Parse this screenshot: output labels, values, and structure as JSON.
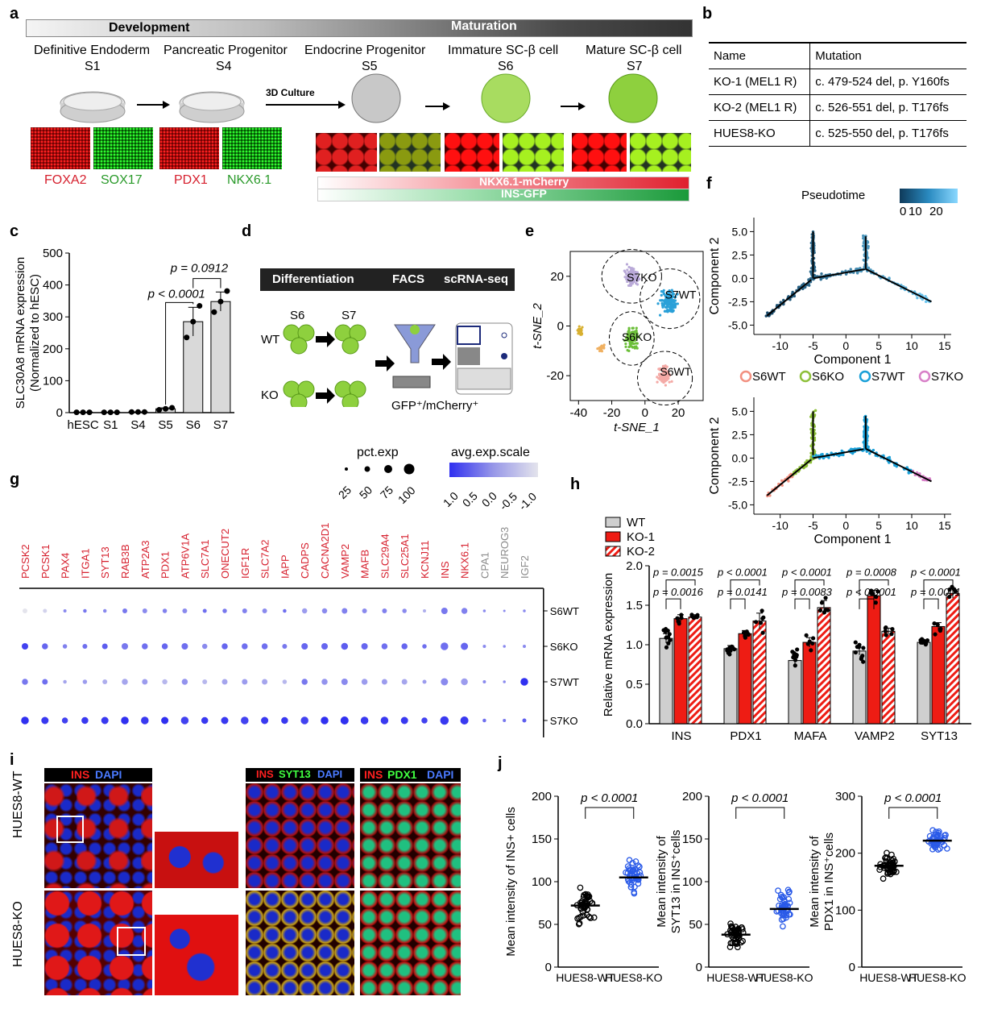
{
  "panels": {
    "a": {
      "label": "a",
      "bar_left": "Development",
      "bar_right": "Maturation",
      "stages": [
        {
          "name": "Definitive Endoderm",
          "stage": "S1"
        },
        {
          "name": "Pancreatic Progenitor",
          "stage": "S4"
        },
        {
          "name": "Endocrine Progenitor",
          "stage": "S5"
        },
        {
          "name": "Immature SC-β cell",
          "stage": "S6"
        },
        {
          "name": "Mature SC-β cell",
          "stage": "S7"
        }
      ],
      "culture_label": "3D Culture",
      "markers": [
        "FOXA2",
        "SOX17",
        "PDX1",
        "NKX6.1"
      ],
      "reporter1": "NKX6.1-mCherry",
      "reporter2": "INS-GFP"
    },
    "b": {
      "label": "b",
      "header": [
        "Name",
        "Mutation"
      ],
      "rows": [
        [
          "KO-1 (MEL1 R)",
          "c. 479-524 del, p. Y160fs"
        ],
        [
          "KO-2 (MEL1 R)",
          "c. 526-551 del, p. T176fs"
        ],
        [
          "HUES8-KO",
          "c. 525-550 del, p. T176fs"
        ]
      ]
    },
    "c": {
      "label": "c",
      "p1": "p < 0.0001",
      "p2": "p = 0.0912"
    },
    "d": {
      "label": "d",
      "steps": [
        "Differentiation",
        "FACS",
        "scRNA-seq"
      ],
      "wt": "WT",
      "ko": "KO",
      "s6": "S6",
      "s7": "S7",
      "sort_label": "GFP⁺/mCherry⁺"
    },
    "e": {
      "label": "e",
      "clusters": [
        "S7KO",
        "S7WT",
        "S6KO",
        "S6WT"
      ]
    },
    "f": {
      "label": "f",
      "legend_title": "Pseudotime",
      "scale_ticks": [
        "0",
        "10",
        "20"
      ],
      "groups": [
        "S6WT",
        "S6KO",
        "S7WT",
        "S7KO"
      ]
    },
    "g": {
      "label": "g",
      "legend_size_title": "pct.exp",
      "legend_color_title": "avg.exp.scale",
      "size_ticks": [
        "25",
        "50",
        "75",
        "100"
      ],
      "color_ticks": [
        "1.0",
        "0.5",
        "0.0",
        "-0.5",
        "-1.0"
      ]
    },
    "h": {
      "label": "h",
      "legend": [
        "WT",
        "KO-1",
        "KO-2"
      ]
    },
    "i": {
      "label": "i",
      "row1": "HUES8-WT",
      "row2": "HUES8-KO",
      "stain1": [
        "INS",
        "DAPI"
      ],
      "stain2": [
        "INS",
        "SYT13",
        "DAPI"
      ],
      "stain3": [
        "INS",
        "PDX1",
        "DAPI"
      ]
    },
    "j": {
      "label": "j"
    }
  },
  "chart_data": [
    {
      "id": "c",
      "type": "bar",
      "categories": [
        "hESC",
        "S1",
        "S4",
        "S5",
        "S6",
        "S7"
      ],
      "values": [
        1,
        1,
        2,
        12,
        285,
        348
      ],
      "errors": [
        0,
        0,
        0,
        3,
        45,
        30
      ],
      "ylabel": "SLC30A8 mRNA expression\n(Normalized to hESC)",
      "ylim": [
        0,
        500
      ],
      "yticks": [
        0,
        100,
        200,
        300,
        400,
        500
      ]
    },
    {
      "id": "e",
      "type": "scatter",
      "xlabel": "t-SNE_1",
      "ylabel": "t-SNE_2",
      "xticks": [
        -40,
        -20,
        0,
        20
      ],
      "yticks": [
        -20,
        0,
        20
      ]
    },
    {
      "id": "f1",
      "type": "scatter",
      "xlabel": "Component 1",
      "ylabel": "Component 2",
      "xticks": [
        -10,
        -5,
        0,
        5,
        10,
        15
      ],
      "yticks": [
        5.0,
        2.5,
        0.0,
        -2.5,
        -5.0
      ]
    },
    {
      "id": "f2",
      "type": "scatter",
      "xlabel": "Component 1",
      "ylabel": "Component 2",
      "xticks": [
        -10,
        -5,
        0,
        5,
        10,
        15
      ],
      "yticks": [
        5.0,
        2.5,
        0.0,
        -2.5,
        -5.0
      ]
    },
    {
      "id": "g",
      "type": "dot",
      "genes": [
        "PCSK2",
        "PCSK1",
        "PAX4",
        "ITGA1",
        "SYT13",
        "RAB3B",
        "ATP2A3",
        "PDX1",
        "ATP6V1A",
        "SLC7A1",
        "ONECUT2",
        "IGF1R",
        "SLC7A2",
        "IAPP",
        "CADPS",
        "CACNA2D1",
        "VAMP2",
        "MAFB",
        "SLC29A4",
        "SLC25A1",
        "KCNJ11",
        "INS",
        "NKX6.1",
        "CPA1",
        "NEUROG3",
        "IGF2"
      ],
      "gene_colors": [
        "#d6202e",
        "#d6202e",
        "#d6202e",
        "#d6202e",
        "#d6202e",
        "#d6202e",
        "#d6202e",
        "#d6202e",
        "#d6202e",
        "#d6202e",
        "#d6202e",
        "#d6202e",
        "#d6202e",
        "#d6202e",
        "#d6202e",
        "#d6202e",
        "#d6202e",
        "#d6202e",
        "#d6202e",
        "#d6202e",
        "#d6202e",
        "#d6202e",
        "#d6202e",
        "#8a8a8a",
        "#8a8a8a",
        "#8a8a8a"
      ],
      "groups": [
        "S6WT",
        "S6KO",
        "S7WT",
        "S7KO"
      ],
      "pct": [
        [
          40,
          30,
          20,
          25,
          25,
          40,
          40,
          35,
          40,
          30,
          35,
          40,
          40,
          25,
          45,
          45,
          50,
          40,
          40,
          35,
          20,
          60,
          55,
          15,
          10,
          15
        ],
        [
          60,
          55,
          35,
          40,
          50,
          60,
          55,
          55,
          60,
          45,
          55,
          55,
          55,
          40,
          60,
          60,
          65,
          60,
          55,
          55,
          35,
          75,
          70,
          20,
          15,
          20
        ],
        [
          55,
          50,
          25,
          35,
          40,
          55,
          50,
          45,
          55,
          40,
          50,
          50,
          50,
          35,
          55,
          55,
          60,
          55,
          50,
          50,
          30,
          70,
          65,
          20,
          15,
          75
        ],
        [
          75,
          70,
          55,
          65,
          70,
          75,
          75,
          70,
          75,
          65,
          70,
          75,
          70,
          65,
          75,
          75,
          80,
          75,
          75,
          70,
          55,
          85,
          80,
          25,
          20,
          30
        ]
      ],
      "scale": [
        [
          -1.0,
          -0.8,
          0.0,
          0.2,
          0.0,
          0.2,
          0.0,
          0.1,
          0.0,
          0.3,
          0.2,
          0.1,
          0.0,
          0.3,
          -0.2,
          0.0,
          0.1,
          0.0,
          0.1,
          0.0,
          -0.4,
          0.2,
          0.1,
          0.0,
          0.0,
          0.0
        ],
        [
          0.8,
          0.4,
          0.1,
          0.3,
          0.5,
          0.2,
          0.3,
          0.4,
          0.3,
          0.0,
          0.4,
          0.3,
          0.3,
          0.2,
          0.4,
          0.4,
          0.5,
          0.4,
          0.3,
          0.4,
          0.3,
          0.3,
          0.4,
          0.0,
          0.0,
          0.0
        ],
        [
          0.2,
          0.3,
          -0.3,
          -0.2,
          -0.4,
          -0.3,
          -0.2,
          -0.5,
          -0.1,
          -0.5,
          -0.3,
          -0.2,
          -0.3,
          -0.5,
          0.2,
          -0.1,
          0.0,
          -0.2,
          -0.2,
          -0.3,
          -0.2,
          0.0,
          -0.2,
          0.0,
          0.0,
          1.0
        ],
        [
          1.0,
          0.9,
          0.8,
          0.9,
          0.9,
          1.0,
          0.9,
          1.0,
          0.8,
          0.9,
          0.9,
          0.8,
          0.9,
          0.9,
          0.8,
          1.0,
          1.0,
          0.9,
          0.9,
          0.9,
          0.8,
          0.9,
          0.9,
          0.3,
          0.2,
          0.5
        ]
      ]
    },
    {
      "id": "h",
      "type": "bar",
      "categories": [
        "INS",
        "PDX1",
        "MAFA",
        "VAMP2",
        "SYT13"
      ],
      "series": [
        {
          "name": "WT",
          "values": [
            1.08,
            0.95,
            0.8,
            0.92,
            1.03
          ],
          "errors": [
            0.06,
            0.04,
            0.07,
            0.05,
            0.02
          ]
        },
        {
          "name": "KO-1",
          "values": [
            1.33,
            1.14,
            1.03,
            1.62,
            1.23
          ],
          "errors": [
            0.05,
            0.04,
            0.06,
            0.07,
            0.05
          ]
        },
        {
          "name": "KO-2",
          "values": [
            1.35,
            1.3,
            1.47,
            1.17,
            1.65
          ],
          "errors": [
            0.03,
            0.1,
            0.09,
            0.04,
            0.06
          ]
        }
      ],
      "p_top": [
        "p = 0.0015",
        "p < 0.0001",
        "p < 0.0001",
        "p = 0.0008",
        "p < 0.0001"
      ],
      "p_low": [
        "p = 0.0016",
        "p = 0.0141",
        "p = 0.0083",
        "p < 0.0001",
        "p = 0.0001"
      ],
      "ylabel": "Relative mRNA expression",
      "ylim": [
        0,
        2.0
      ],
      "yticks": [
        0,
        0.5,
        1.0,
        1.5,
        2.0
      ]
    },
    {
      "id": "j1",
      "type": "scatter",
      "categories": [
        "HUES8-WT",
        "HUES8-KO"
      ],
      "means": [
        72,
        105
      ],
      "ylabel": "Mean intensity of  INS+ cells",
      "ylim": [
        0,
        200
      ],
      "yticks": [
        0,
        50,
        100,
        150,
        200
      ],
      "p": "p < 0.0001"
    },
    {
      "id": "j2",
      "type": "scatter",
      "categories": [
        "HUES8-WT",
        "HUES8-KO"
      ],
      "means": [
        38,
        68
      ],
      "ylabel": "Mean intensity of\nSYT13 in INS⁺cells",
      "ylim": [
        0,
        200
      ],
      "yticks": [
        0,
        50,
        100,
        150,
        200
      ],
      "p": "p < 0.0001"
    },
    {
      "id": "j3",
      "type": "scatter",
      "categories": [
        "HUES8-WT",
        "HUES8-KO"
      ],
      "means": [
        178,
        222
      ],
      "ylabel": "Mean intensity of\nPDX1 in INS⁺cells",
      "ylim": [
        0,
        300
      ],
      "yticks": [
        0,
        100,
        200,
        300
      ],
      "p": "p < 0.0001"
    }
  ]
}
